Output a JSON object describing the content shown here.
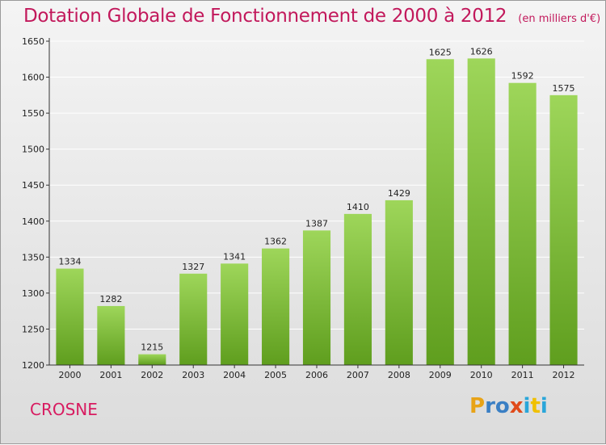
{
  "title": "Dotation Globale de Fonctionnement de 2000 à 2012",
  "unit": "(en milliers d'€)",
  "commune": "CROSNE",
  "logo": {
    "letters": [
      "P",
      "r",
      "o",
      "x",
      "i",
      "t",
      "i"
    ],
    "colors": [
      "#e8a317",
      "#3a7fc4",
      "#3a7fc4",
      "#e04a1a",
      "#2aa6d9",
      "#f0c000",
      "#2aa6d9"
    ]
  },
  "colors": {
    "bar_top": "#9ed65a",
    "bar_bottom": "#5f9e1e",
    "title": "#c2185b",
    "axis": "#333333",
    "grid": "#ffffff"
  },
  "chart_data": {
    "type": "bar",
    "categories": [
      "2000",
      "2001",
      "2002",
      "2003",
      "2004",
      "2005",
      "2006",
      "2007",
      "2008",
      "2009",
      "2010",
      "2011",
      "2012"
    ],
    "values": [
      1334,
      1282,
      1215,
      1327,
      1341,
      1362,
      1387,
      1410,
      1429,
      1625,
      1626,
      1592,
      1575
    ],
    "yticks": [
      1200,
      1250,
      1300,
      1350,
      1400,
      1450,
      1500,
      1550,
      1600,
      1650
    ],
    "ylim": [
      1200,
      1650
    ],
    "title": "Dotation Globale de Fonctionnement de 2000 à 2012",
    "xlabel": "",
    "ylabel": "",
    "grid": true,
    "legend": "none"
  }
}
